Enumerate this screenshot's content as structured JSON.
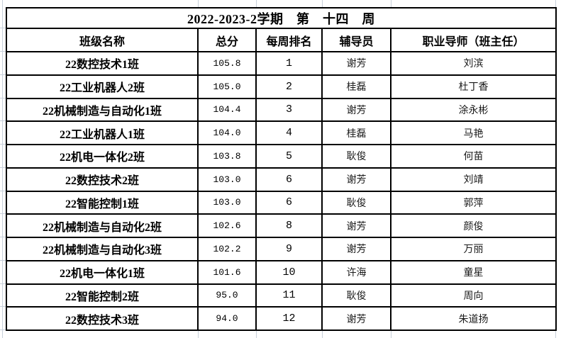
{
  "title": "2022-2023-2学期　第　十四　周",
  "columns": [
    {
      "key": "class",
      "label": "班级名称"
    },
    {
      "key": "score",
      "label": "总分"
    },
    {
      "key": "rank",
      "label": "每周排名"
    },
    {
      "key": "counselor",
      "label": "辅导员"
    },
    {
      "key": "mentor",
      "label": "职业导师（班主任）"
    }
  ],
  "rows": [
    {
      "class": "22数控技术1班",
      "score": "105.8",
      "rank": "1",
      "counselor": "谢芳",
      "mentor": "刘滨"
    },
    {
      "class": "22工业机器人2班",
      "score": "105.0",
      "rank": "2",
      "counselor": "桂磊",
      "mentor": "杜丁香"
    },
    {
      "class": "22机械制造与自动化1班",
      "score": "104.4",
      "rank": "3",
      "counselor": "谢芳",
      "mentor": "涂永彬"
    },
    {
      "class": "22工业机器人1班",
      "score": "104.0",
      "rank": "4",
      "counselor": "桂磊",
      "mentor": "马艳"
    },
    {
      "class": "22机电一体化2班",
      "score": "103.8",
      "rank": "5",
      "counselor": "耿俊",
      "mentor": "何苗"
    },
    {
      "class": "22数控技术2班",
      "score": "103.0",
      "rank": "6",
      "counselor": "谢芳",
      "mentor": "刘靖"
    },
    {
      "class": "22智能控制1班",
      "score": "103.0",
      "rank": "6",
      "counselor": "耿俊",
      "mentor": "郭萍"
    },
    {
      "class": "22机械制造与自动化2班",
      "score": "102.6",
      "rank": "8",
      "counselor": "谢芳",
      "mentor": "颜俊"
    },
    {
      "class": "22机械制造与自动化3班",
      "score": "102.2",
      "rank": "9",
      "counselor": "谢芳",
      "mentor": "万丽"
    },
    {
      "class": "22机电一体化1班",
      "score": "101.6",
      "rank": "10",
      "counselor": "许海",
      "mentor": "童星"
    },
    {
      "class": "22智能控制2班",
      "score": "95.0",
      "rank": "11",
      "counselor": "耿俊",
      "mentor": "周向"
    },
    {
      "class": "22数控技术3班",
      "score": "94.0",
      "rank": "12",
      "counselor": "谢芳",
      "mentor": "朱道扬"
    }
  ],
  "colors": {
    "table_border": "#000000",
    "outer_gridline": "#c8d0da",
    "text": "#000000",
    "background": "#ffffff"
  }
}
